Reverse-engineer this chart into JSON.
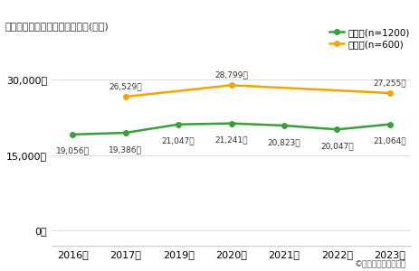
{
  "years": [
    "2016年",
    "2017年",
    "2019年",
    "2020年",
    "2021年",
    "2022年",
    "2023年"
  ],
  "elementary_values": [
    19056,
    19386,
    21047,
    21241,
    20823,
    20047,
    21064
  ],
  "middle_values": [
    null,
    26529,
    null,
    28799,
    null,
    null,
    27255
  ],
  "elementary_labels": [
    "19,056円",
    "19,386円",
    "21,047円",
    "21,241円",
    "20,823円",
    "20,047円",
    "21,064円"
  ],
  "middle_label_indices": [
    1,
    3,
    6
  ],
  "middle_label_texts": [
    "26,529円",
    "28,799円",
    "27,255円"
  ],
  "elementary_color": "#3a9e3a",
  "middle_color": "#f0a500",
  "title": "お正月にもらったお年玉の総額(平均)",
  "legend_elementary": "小学生(n=1200)",
  "legend_middle": "中学生(n=600)",
  "yticks": [
    0,
    15000,
    30000
  ],
  "ytick_labels": [
    "0円",
    "15,000円",
    "30,000円"
  ],
  "ylim": [
    -3000,
    35000
  ],
  "xlim": [
    -0.4,
    6.4
  ],
  "copyright": "©学研教育総合研究所",
  "background_color": "#ffffff",
  "grid_color": "#e0e0e0",
  "spine_color": "#cccccc"
}
